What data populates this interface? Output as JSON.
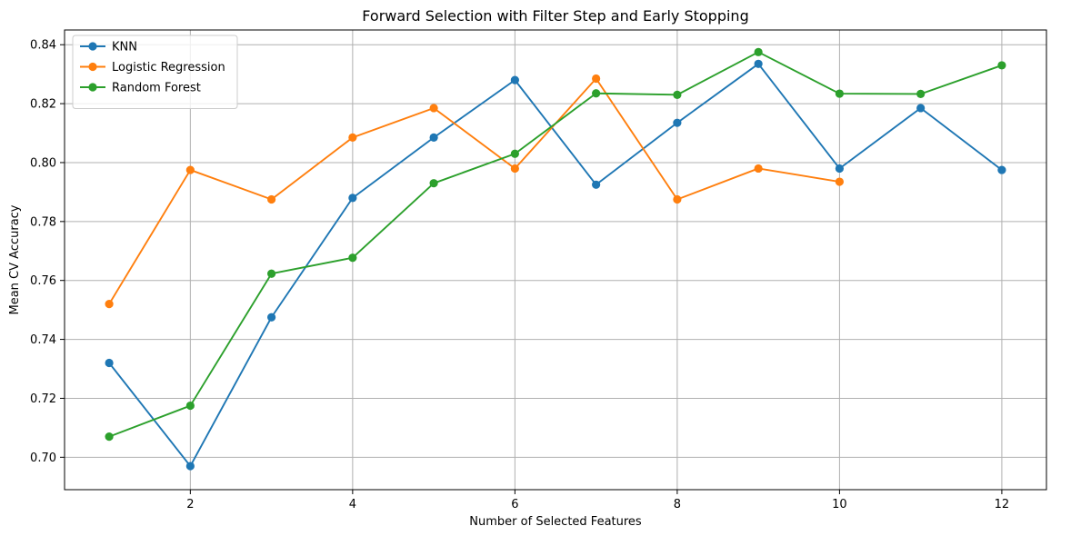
{
  "chart_data": {
    "type": "line",
    "title": "Forward Selection with Filter Step and Early Stopping",
    "xlabel": "Number of Selected Features",
    "ylabel": "Mean CV Accuracy",
    "xlim": [
      0.45,
      12.55
    ],
    "ylim": [
      0.689,
      0.845
    ],
    "xticks": [
      2,
      4,
      6,
      8,
      10,
      12
    ],
    "yticks": [
      0.7,
      0.72,
      0.74,
      0.76,
      0.78,
      0.8,
      0.82,
      0.84
    ],
    "xtick_labels": [
      "2",
      "4",
      "6",
      "8",
      "10",
      "12"
    ],
    "ytick_labels": [
      "0.70",
      "0.72",
      "0.74",
      "0.76",
      "0.78",
      "0.80",
      "0.82",
      "0.84"
    ],
    "grid": true,
    "legend_position": "top-left",
    "series": [
      {
        "name": "KNN",
        "color": "#1f77b4",
        "x": [
          1,
          2,
          3,
          4,
          5,
          6,
          7,
          8,
          9,
          10,
          11,
          12
        ],
        "y": [
          0.732,
          0.697,
          0.7475,
          0.788,
          0.8085,
          0.828,
          0.7925,
          0.8135,
          0.8335,
          0.798,
          0.8185,
          0.7975
        ]
      },
      {
        "name": "Logistic Regression",
        "color": "#ff7f0e",
        "x": [
          1,
          2,
          3,
          4,
          5,
          6,
          7,
          8,
          9,
          10
        ],
        "y": [
          0.752,
          0.7975,
          0.7875,
          0.8085,
          0.8185,
          0.798,
          0.8285,
          0.7875,
          0.798,
          0.7935
        ]
      },
      {
        "name": "Random Forest",
        "color": "#2ca02c",
        "x": [
          1,
          2,
          3,
          4,
          5,
          6,
          7,
          8,
          9,
          10,
          11,
          12
        ],
        "y": [
          0.707,
          0.7175,
          0.7623,
          0.7677,
          0.793,
          0.803,
          0.8235,
          0.823,
          0.8375,
          0.8234,
          0.8233,
          0.833
        ]
      }
    ]
  }
}
